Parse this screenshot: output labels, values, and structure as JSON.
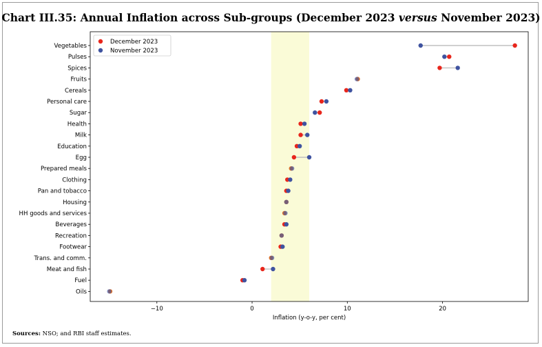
{
  "title": {
    "prefix": "Chart III.35: Annual Inflation across Sub-groups (December 2023 ",
    "versus": "versus",
    "suffix": " November 2023)"
  },
  "source": {
    "label": "Sources:",
    "text": " NSO; and RBI staff estimates."
  },
  "colors": {
    "december": "#e8261c",
    "november": "#3f53a0",
    "overlap": "#e0742c",
    "band": "#fafbd7",
    "connector": "#c0c0c0"
  },
  "chart_data": {
    "type": "dumbbell",
    "xlabel": "Inflation (y-o-y, per cent)",
    "ylabel": "",
    "xlim": [
      -17,
      29
    ],
    "xticks": [
      -10,
      0,
      10,
      20
    ],
    "xtick_labels": [
      "−10",
      "0",
      "10",
      "20"
    ],
    "shaded_band": [
      2,
      6
    ],
    "legend_position": "top-left",
    "grid": false,
    "series": [
      {
        "name": "December 2023",
        "color": "#e8261c"
      },
      {
        "name": "November 2023",
        "color": "#3f53a0"
      }
    ],
    "categories": [
      "Vegetables",
      "Pulses",
      "Spices",
      "Fruits",
      "Cereals",
      "Personal care",
      "Sugar",
      "Health",
      "Milk",
      "Education",
      "Egg",
      "Prepared meals",
      "Clothing",
      "Pan and tobacco",
      "Housing",
      "HH goods and services",
      "Beverages",
      "Recreation",
      "Footwear",
      "Trans. and comm.",
      "Meat and fish",
      "Fuel",
      "Oils"
    ],
    "december": [
      27.6,
      20.7,
      19.7,
      11.1,
      9.9,
      7.3,
      7.1,
      5.1,
      5.1,
      4.7,
      4.4,
      4.1,
      3.7,
      3.6,
      3.6,
      3.4,
      3.4,
      3.1,
      3.0,
      2.0,
      1.1,
      -1.0,
      -14.9
    ],
    "november": [
      17.7,
      20.2,
      21.6,
      11.0,
      10.3,
      7.8,
      6.6,
      5.5,
      5.8,
      5.0,
      6.0,
      4.2,
      4.0,
      3.8,
      3.6,
      3.5,
      3.6,
      3.1,
      3.2,
      2.1,
      2.2,
      -0.8,
      -15.0
    ]
  }
}
